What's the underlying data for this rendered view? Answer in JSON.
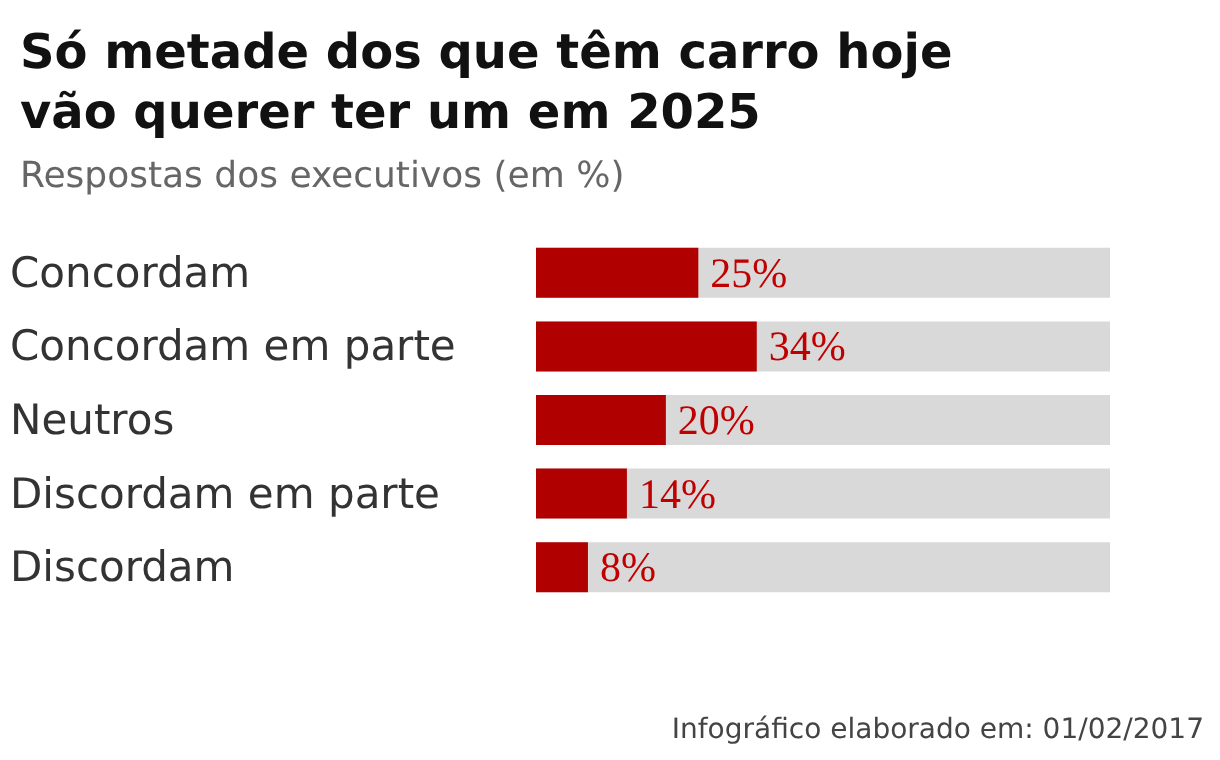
{
  "chart_data": {
    "type": "bar",
    "orientation": "horizontal",
    "title": "Só metade dos que têm carro hoje vão querer ter um em 2025",
    "subtitle": "Respostas dos executivos (em %)",
    "categories": [
      "Concordam",
      "Concordam em parte",
      "Neutros",
      "Discordam em parte",
      "Discordam"
    ],
    "values": [
      25,
      34,
      20,
      14,
      8
    ],
    "color": "#b00000",
    "value_labels": [
      "25%",
      "34%",
      "20%",
      "14%",
      "8%"
    ],
    "tick_labels": "y",
    "annotations": [
      "Infográfico elaborado em: 01/02/2017"
    ]
  }
}
